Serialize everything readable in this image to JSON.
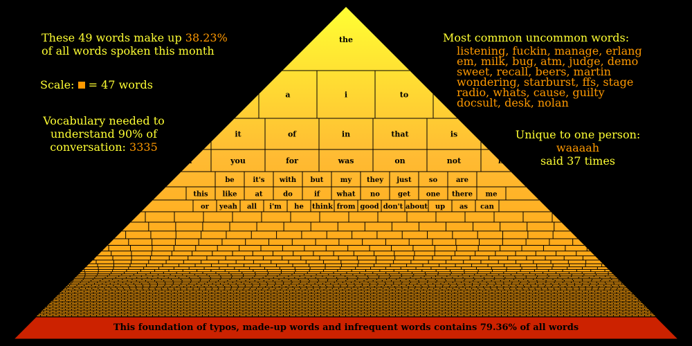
{
  "colors": {
    "background": "#000000",
    "text_primary": "#ffff33",
    "text_accent": "#ff9900",
    "pyramid_top": "#ffff33",
    "pyramid_mid": "#ffcc33",
    "pyramid_bottom": "#ff9900",
    "foundation": "#cc2200",
    "grid_line": "#000000"
  },
  "left_panel": {
    "summary_prefix": "These 49 words make up",
    "summary_percent": "38.23%",
    "summary_suffix": "of all words spoken this month",
    "scale_label": "Scale:",
    "scale_value": "= 47 words",
    "vocab_line1": "Vocabulary needed to",
    "vocab_line2": "understand 90% of",
    "vocab_line3": "conversation:",
    "vocab_value": "3335"
  },
  "right_panel": {
    "uncommon_title": "Most common uncommon words:",
    "uncommon_lines": [
      "listening, fuckin, manage, erlang",
      "em, milk, bug, atm, judge, demo",
      "sweet, recall, beers, martin",
      "wondering, starburst, ffs, stage",
      "radio, whats, cause, guilty",
      "docsult, desk, nolan"
    ],
    "unique_title": "Unique to one person:",
    "unique_word": "waaaah",
    "unique_count": "said 37 times"
  },
  "pyramid": {
    "rows": [
      {
        "words": [
          "the"
        ]
      },
      {
        "words": [
          "a",
          "i",
          "to"
        ]
      },
      {
        "words": [
          "it",
          "of",
          "in",
          "that",
          "is"
        ]
      },
      {
        "words": [
          "and",
          "you",
          "for",
          "was",
          "on",
          "not",
          "have"
        ]
      },
      {
        "words": [
          "be",
          "it's",
          "with",
          "but",
          "my",
          "they",
          "just",
          "so",
          "are"
        ]
      },
      {
        "words": [
          "this",
          "like",
          "at",
          "do",
          "if",
          "what",
          "no",
          "get",
          "one",
          "there",
          "me"
        ]
      },
      {
        "words": [
          "or",
          "yeah",
          "all",
          "i'm",
          "he",
          "think",
          "from",
          "good",
          "don't",
          "about",
          "up",
          "as",
          "can"
        ]
      }
    ],
    "foundation_label": "This foundation of typos, made-up words and infrequent words contains 79.36% of all words"
  }
}
